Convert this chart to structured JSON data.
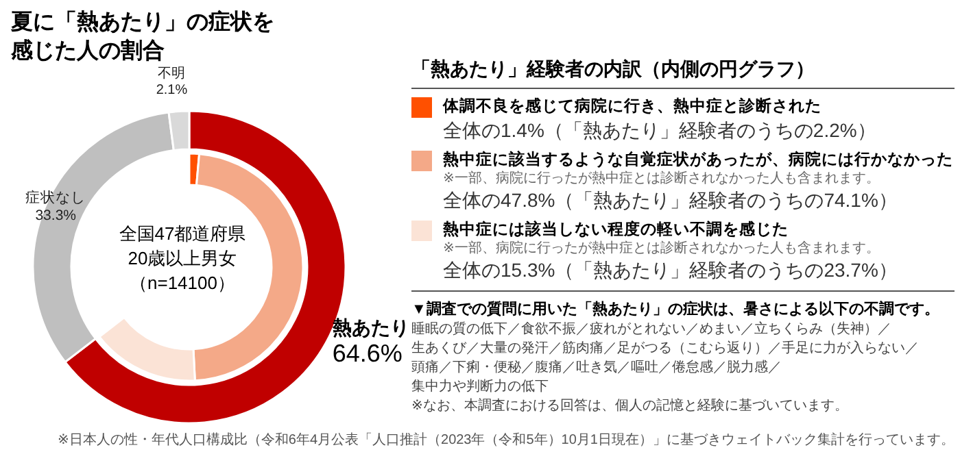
{
  "chart_data": [
    {
      "type": "donut",
      "title": "夏に「熱あたり」の症状を感じた人の割合",
      "categories": [
        "熱あたり",
        "症状なし",
        "不明"
      ],
      "values": [
        64.6,
        33.3,
        2.1
      ],
      "colors": [
        "#c00000",
        "#bfbfbf",
        "#d9d9d9"
      ],
      "value_labels": [
        "64.6%",
        "33.3%",
        "2.1%"
      ],
      "annotations": [
        "全国47都道府県",
        "20歳以上男女",
        "（n=14100）"
      ]
    },
    {
      "type": "donut",
      "legend_title": "「熱あたり」経験者の内訳（内側の円グラフ）",
      "categories": [
        "体調不良を感じて病院に行き、熱中症と診断された",
        "熱中症に該当するような自覚症状があったが、病院には行かなかった",
        "熱中症には該当しない程度の軽い不調を感じた"
      ],
      "values": [
        1.4,
        47.8,
        15.3
      ],
      "colors": [
        "#ff5000",
        "#f4a988",
        "#fbe3d6"
      ],
      "value_labels": [
        "全体の1.4%（「熱あたり」経験者のうちの2.2%）",
        "全体の47.8%（「熱あたり」経験者のうちの74.1%）",
        "全体の15.3%（「熱あたり」経験者のうちの23.7%）"
      ],
      "legend": "right",
      "annotations": [
        "※一部、病院に行ったが熱中症とは診断されなかった人も含まれます。",
        "※一部、病院に行ったが熱中症とは診断されなかった人も含まれます。",
        "▼調査での質問に用いた「熱あたり」の症状は、暑さによる以下の不調です。",
        "睡眠の質の低下／食欲不振／疲れがとれない／めまい／立ちくらみ（失神）／",
        "生あくび／大量の発汗／筋肉痛／足がつる（こむら返り）／手足に力が入らない／",
        "頭痛／下痢・便秘／腹痛／吐き気／嘔吐／倦怠感／脱力感／",
        "集中力や判断力の低下",
        "※なお、本調査における回答は、個人の記憶と経験に基づいています。",
        "※日本人の性・年代人口構成比（令和6年4月公表「人口推計（2023年（令和5年）10月1日現在）」に基づきウェイトバック集計を行っています。"
      ]
    }
  ]
}
